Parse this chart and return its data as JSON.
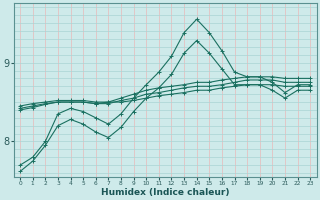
{
  "xlabel": "Humidex (Indice chaleur)",
  "bg_color": "#ceeaea",
  "grid_color_h": "#aad4d4",
  "grid_color_v": "#e8b8b8",
  "line_color": "#1a7060",
  "xlim": [
    -0.5,
    23.5
  ],
  "ylim": [
    7.55,
    9.75
  ],
  "yticks": [
    8,
    9
  ],
  "xticks": [
    0,
    1,
    2,
    3,
    4,
    5,
    6,
    7,
    8,
    9,
    10,
    11,
    12,
    13,
    14,
    15,
    16,
    17,
    18,
    19,
    20,
    21,
    22,
    23
  ],
  "lines": [
    {
      "x": [
        0,
        1,
        2,
        3,
        4,
        5,
        6,
        7,
        8,
        9,
        10,
        11,
        12,
        13,
        14,
        15,
        16,
        17,
        18,
        19,
        20,
        21,
        22,
        23
      ],
      "y": [
        8.45,
        8.48,
        8.5,
        8.52,
        8.52,
        8.52,
        8.5,
        8.5,
        8.5,
        8.52,
        8.55,
        8.58,
        8.6,
        8.62,
        8.65,
        8.65,
        8.68,
        8.7,
        8.72,
        8.72,
        8.72,
        8.7,
        8.7,
        8.7
      ]
    },
    {
      "x": [
        0,
        1,
        2,
        3,
        4,
        5,
        6,
        7,
        8,
        9,
        10,
        11,
        12,
        13,
        14,
        15,
        16,
        17,
        18,
        19,
        20,
        21,
        22,
        23
      ],
      "y": [
        8.42,
        8.45,
        8.48,
        8.5,
        8.5,
        8.5,
        8.48,
        8.48,
        8.52,
        8.55,
        8.6,
        8.62,
        8.65,
        8.68,
        8.7,
        8.7,
        8.72,
        8.75,
        8.78,
        8.78,
        8.78,
        8.75,
        8.75,
        8.75
      ]
    },
    {
      "x": [
        0,
        1,
        2,
        3,
        4,
        5,
        6,
        7,
        8,
        9,
        10,
        11,
        12,
        13,
        14,
        15,
        16,
        17,
        18,
        19,
        20,
        21,
        22,
        23
      ],
      "y": [
        8.4,
        8.43,
        8.47,
        8.5,
        8.5,
        8.5,
        8.48,
        8.5,
        8.55,
        8.6,
        8.65,
        8.68,
        8.7,
        8.72,
        8.75,
        8.75,
        8.78,
        8.8,
        8.82,
        8.82,
        8.82,
        8.8,
        8.8,
        8.8
      ]
    },
    {
      "x": [
        0,
        1,
        2,
        3,
        4,
        5,
        6,
        7,
        8,
        9,
        10,
        11,
        12,
        13,
        14,
        15,
        16,
        17,
        18,
        19,
        20,
        21,
        22,
        23
      ],
      "y": [
        7.7,
        7.8,
        8.0,
        8.35,
        8.42,
        8.38,
        8.3,
        8.22,
        8.35,
        8.55,
        8.72,
        8.88,
        9.08,
        9.38,
        9.55,
        9.38,
        9.15,
        8.88,
        8.82,
        8.82,
        8.75,
        8.62,
        8.72,
        8.72
      ]
    },
    {
      "x": [
        0,
        1,
        2,
        3,
        4,
        5,
        6,
        7,
        8,
        9,
        10,
        11,
        12,
        13,
        14,
        15,
        16,
        17,
        18,
        19,
        20,
        21,
        22,
        23
      ],
      "y": [
        7.62,
        7.75,
        7.95,
        8.2,
        8.28,
        8.22,
        8.12,
        8.05,
        8.18,
        8.38,
        8.55,
        8.68,
        8.85,
        9.12,
        9.28,
        9.12,
        8.92,
        8.72,
        8.72,
        8.72,
        8.65,
        8.55,
        8.65,
        8.65
      ]
    }
  ]
}
